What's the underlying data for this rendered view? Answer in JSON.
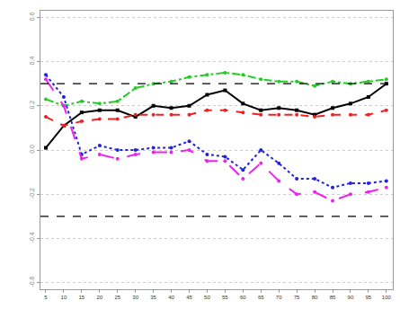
{
  "chart_data": {
    "type": "line",
    "x": [
      5,
      10,
      15,
      20,
      25,
      30,
      35,
      40,
      45,
      50,
      55,
      60,
      65,
      70,
      75,
      80,
      85,
      90,
      95,
      100
    ],
    "xlim": [
      3.5,
      101.8
    ],
    "xticks": [
      5,
      10,
      15,
      20,
      25,
      30,
      35,
      40,
      45,
      50,
      55,
      60,
      65,
      70,
      75,
      80,
      85,
      90,
      95,
      100
    ],
    "ylim": [
      -0.63,
      0.63
    ],
    "yticks": [
      -0.6,
      -0.4,
      -0.2,
      {
        "value": 0,
        "label": "0.0"
      },
      0.2,
      0.4,
      0.6
    ],
    "grid": true,
    "hlines": [
      0.3,
      -0.3
    ],
    "series": [
      {
        "color": "#000000",
        "line_style": "solid",
        "marker": "square",
        "values": [
          0.01,
          0.11,
          0.17,
          0.18,
          0.18,
          0.15,
          0.2,
          0.19,
          0.2,
          0.25,
          0.27,
          0.21,
          0.18,
          0.19,
          0.18,
          0.16,
          0.19,
          0.21,
          0.24,
          0.3
        ]
      },
      {
        "color": "#22cc22",
        "line_style": "dashdot",
        "marker": "circle",
        "values": [
          0.23,
          0.2,
          0.22,
          0.21,
          0.22,
          0.28,
          0.3,
          0.31,
          0.33,
          0.34,
          0.35,
          0.34,
          0.32,
          0.31,
          0.31,
          0.29,
          0.31,
          0.3,
          0.31,
          0.32
        ]
      },
      {
        "color": "#ee2222",
        "line_style": "dash",
        "marker": "circle",
        "values": [
          0.15,
          0.11,
          0.13,
          0.14,
          0.14,
          0.16,
          0.16,
          0.16,
          0.16,
          0.18,
          0.18,
          0.17,
          0.16,
          0.16,
          0.16,
          0.15,
          0.16,
          0.16,
          0.16,
          0.18
        ]
      },
      {
        "color": "#2222dd",
        "line_style": "dot",
        "marker": "circle",
        "values": [
          0.34,
          0.24,
          -0.02,
          0.02,
          0.0,
          0.0,
          0.01,
          0.01,
          0.04,
          -0.02,
          -0.03,
          -0.09,
          0.0,
          -0.06,
          -0.13,
          -0.13,
          -0.17,
          -0.15,
          -0.15,
          -0.14
        ]
      },
      {
        "color": "#ee22ee",
        "line_style": "longdash",
        "marker": "circle",
        "values": [
          0.32,
          0.2,
          -0.04,
          -0.02,
          -0.04,
          -0.02,
          -0.01,
          -0.01,
          0.0,
          -0.05,
          -0.05,
          -0.13,
          -0.06,
          -0.14,
          -0.2,
          -0.19,
          -0.23,
          -0.2,
          -0.19,
          -0.17
        ]
      }
    ]
  }
}
